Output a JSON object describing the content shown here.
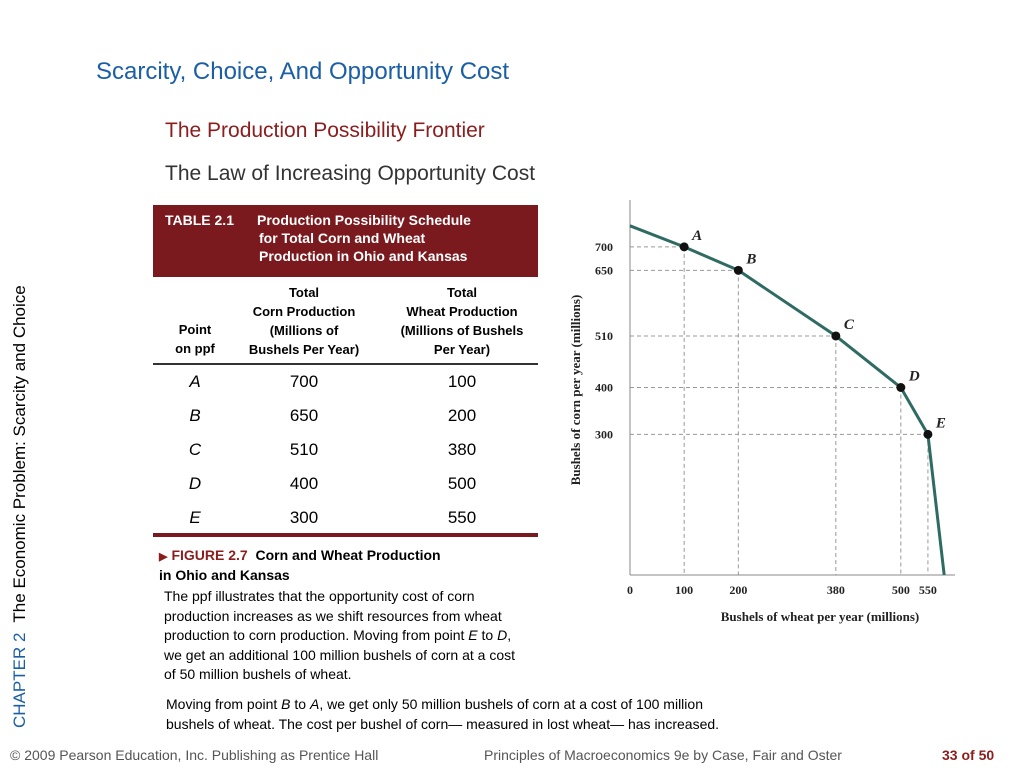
{
  "sidebar": {
    "chapter": "CHAPTER 2",
    "chapter_title": "The Economic Problem:  Scarcity and Choice"
  },
  "slide": {
    "title": "Scarcity, Choice, And Opportunity Cost",
    "subtitle": "The Production Possibility Frontier",
    "subtitle2": "The Law of Increasing Opportunity Cost"
  },
  "table": {
    "label": "TABLE 2.1",
    "title_lines": [
      "Production Possibility Schedule",
      "for Total Corn and Wheat",
      "Production in Ohio and Kansas"
    ],
    "col1_header": [
      "Point",
      "on ppf"
    ],
    "col2_header": [
      "Total",
      "Corn Production",
      "(Millions of",
      "Bushels Per Year)"
    ],
    "col3_header": [
      "Total",
      "Wheat Production",
      "(Millions of Bushels",
      "Per Year)"
    ],
    "rows": [
      {
        "point": "A",
        "corn": "700",
        "wheat": "100"
      },
      {
        "point": "B",
        "corn": "650",
        "wheat": "200"
      },
      {
        "point": "C",
        "corn": "510",
        "wheat": "380"
      },
      {
        "point": "D",
        "corn": "400",
        "wheat": "500"
      },
      {
        "point": "E",
        "corn": "300",
        "wheat": "550"
      }
    ]
  },
  "figure": {
    "label": "FIGURE 2.7",
    "caption_rest": "Corn and Wheat Production",
    "caption_line2": "in Ohio and Kansas",
    "body1": [
      "The ppf illustrates that the opportunity cost of corn",
      "production increases as we shift resources from wheat",
      "production to corn production. Moving from point ",
      "E",
      " to ",
      "D",
      ",",
      "we get an additional 100 million bushels of corn at a cost",
      "of 50 million bushels of wheat."
    ],
    "body2": [
      "Moving from point ",
      "B",
      " to ",
      "A",
      ", we get only 50 million bushels of corn at a cost of 100 million",
      "bushels of wheat. The cost per bushel of corn— measured in lost wheat— has increased."
    ]
  },
  "chart_data": {
    "type": "line",
    "xlabel": "Bushels of wheat per year (millions)",
    "ylabel": "Bushels of corn per year (millions)",
    "origin_label": "0",
    "x_ticks": [
      100,
      200,
      380,
      500,
      550
    ],
    "y_ticks": [
      700,
      650,
      510,
      400,
      300
    ],
    "xlim": [
      0,
      600
    ],
    "ylim": [
      0,
      800
    ],
    "points": [
      {
        "label": "A",
        "x": 100,
        "y": 700
      },
      {
        "label": "B",
        "x": 200,
        "y": 650
      },
      {
        "label": "C",
        "x": 380,
        "y": 510
      },
      {
        "label": "D",
        "x": 500,
        "y": 400
      },
      {
        "label": "E",
        "x": 550,
        "y": 300
      }
    ],
    "curve_color": "#2e6b63"
  },
  "footer": {
    "copyright": "© 2009 Pearson Education, Inc. Publishing as Prentice Hall",
    "book": "Principles of Macroeconomics 9e by Case, Fair and Oster",
    "page": "33 of 50"
  }
}
